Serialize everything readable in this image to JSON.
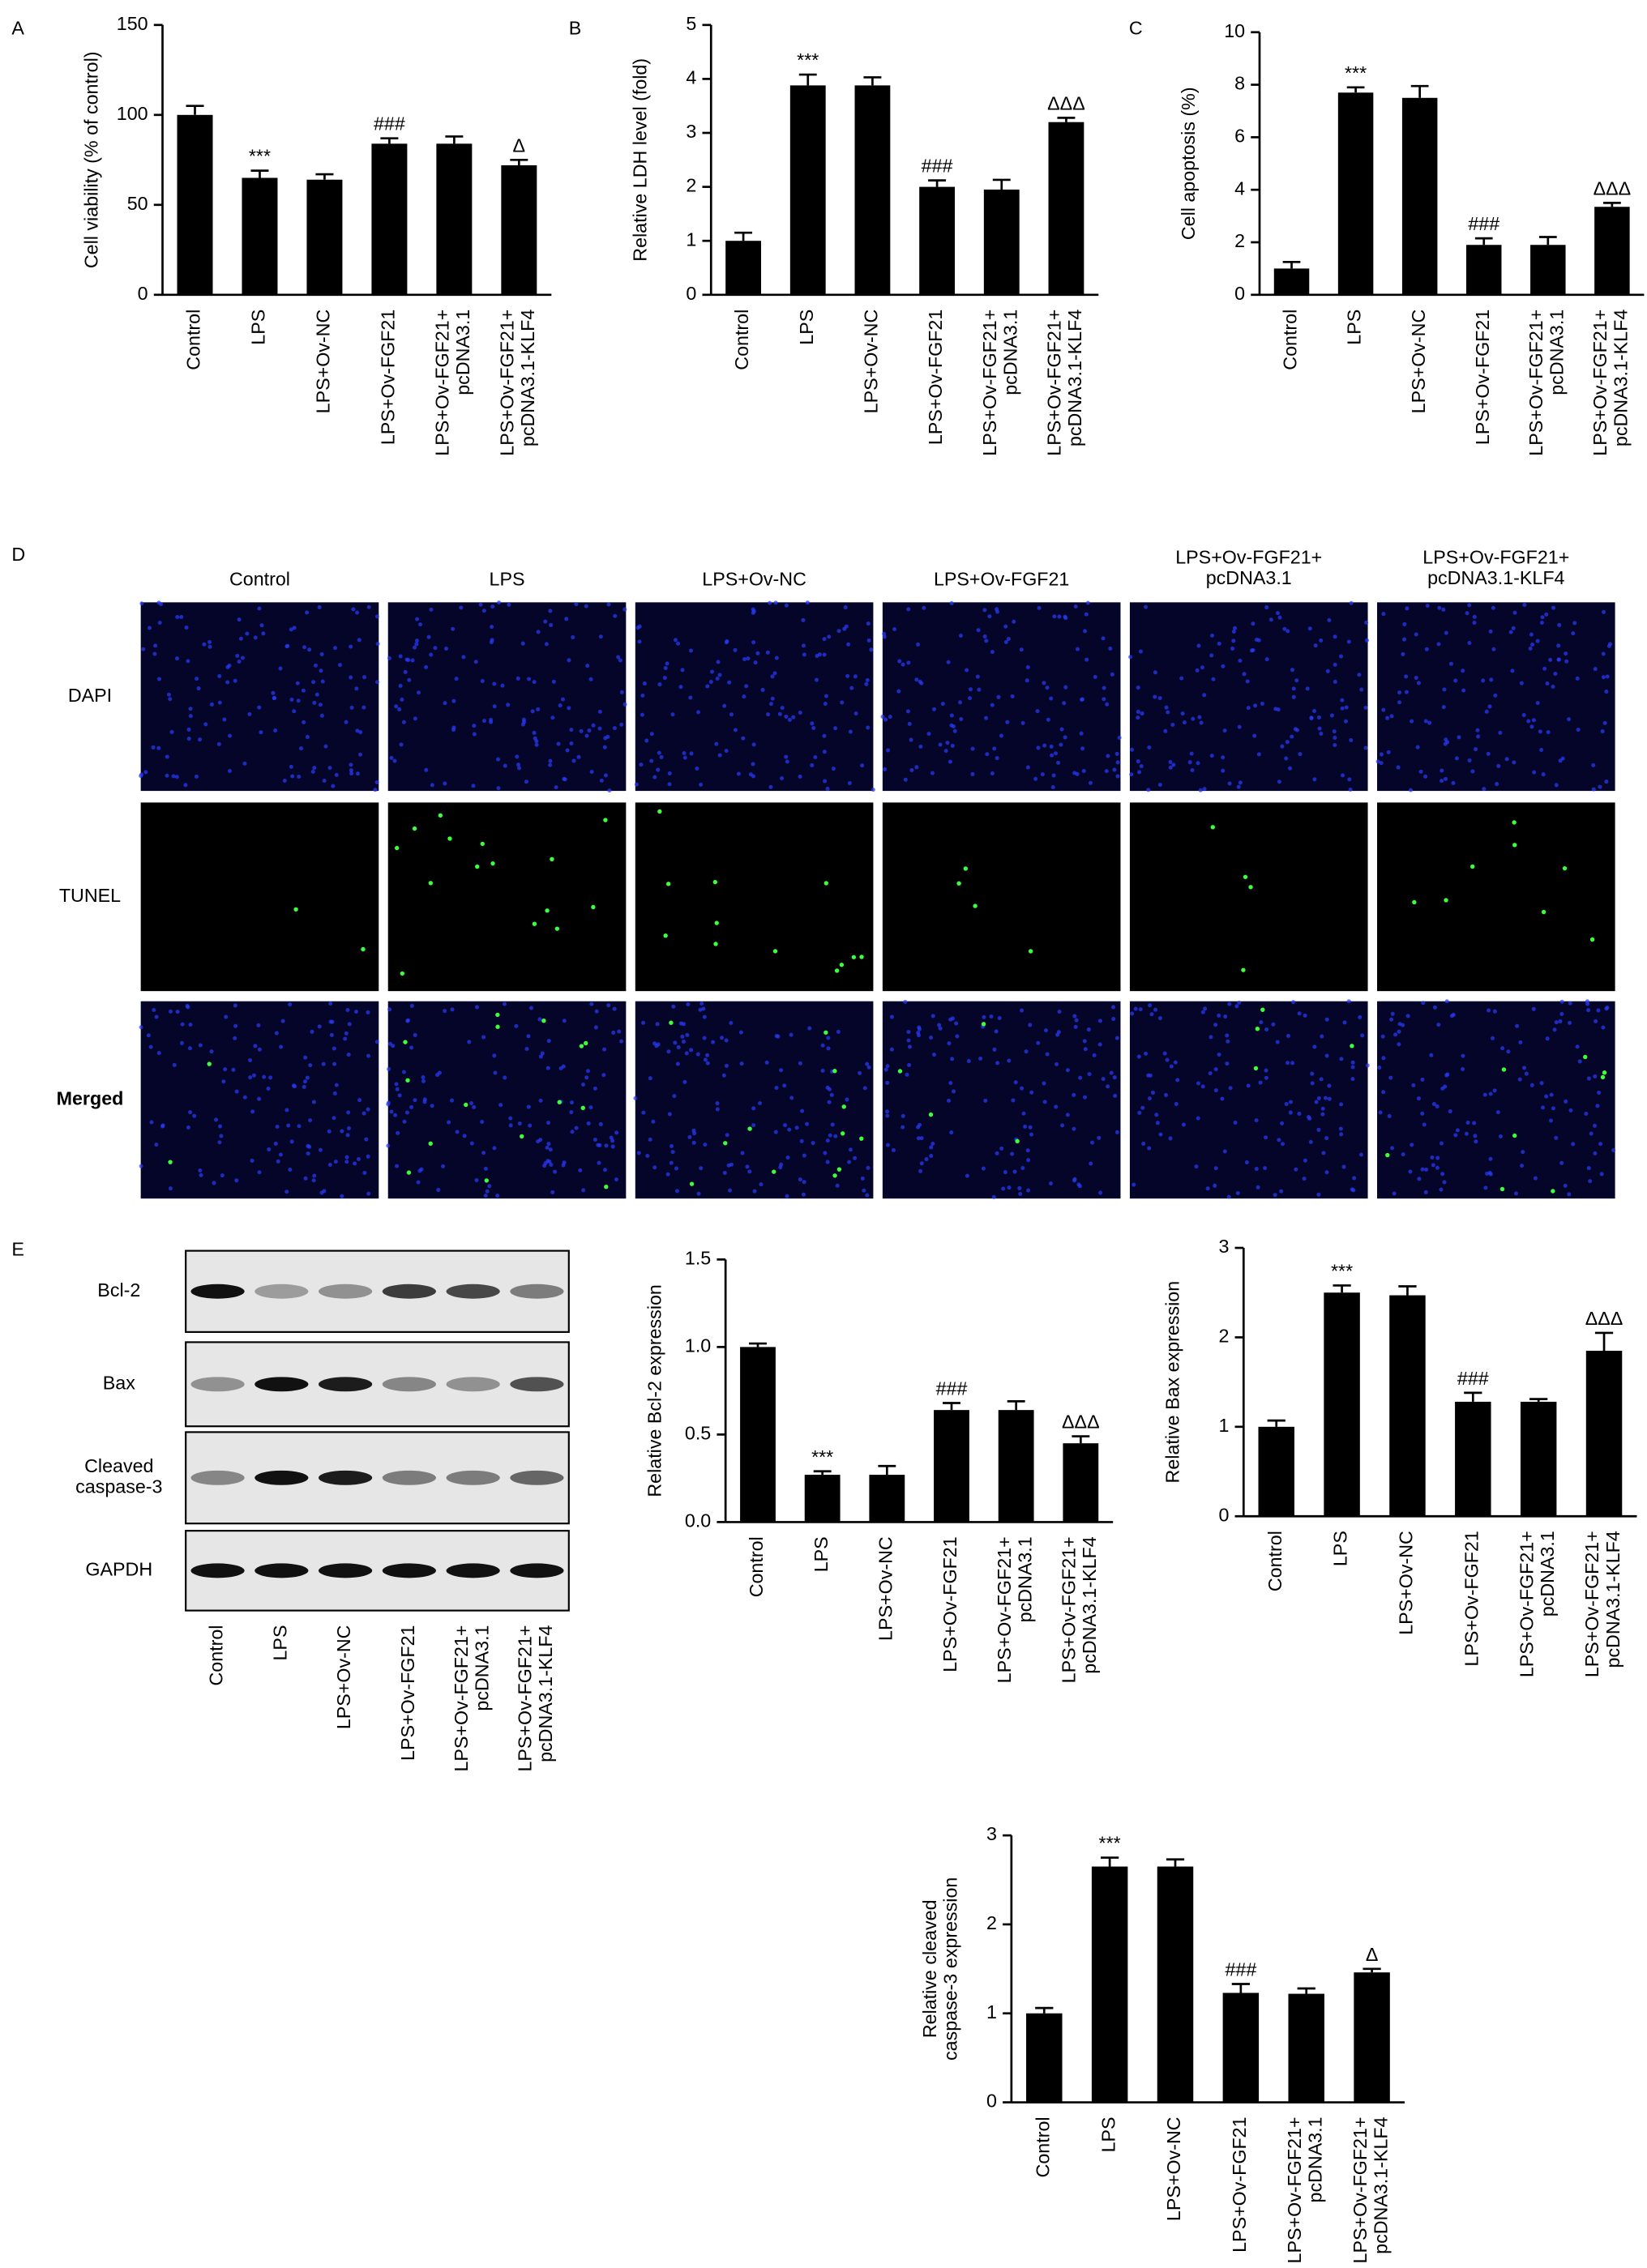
{
  "panel_labels": [
    "A",
    "B",
    "C",
    "D",
    "E"
  ],
  "chart_data": [
    {
      "type": "bar",
      "ylabel": "Cell viability (% of control)",
      "categories": [
        "Control",
        "LPS",
        "LPS+Ov-NC",
        "LPS+Ov-FGF21",
        "LPS+Ov-FGF21+\npcDNA3.1",
        "LPS+Ov-FGF21+\npcDNA3.1-KLF4"
      ],
      "values": [
        100,
        65,
        64,
        84,
        84,
        72
      ],
      "errors": [
        5,
        4,
        3,
        3,
        4,
        3
      ],
      "annotations": [
        null,
        "***",
        null,
        "###",
        null,
        "Δ"
      ],
      "ylim": [
        0,
        150
      ],
      "yticks": [
        0,
        50,
        100,
        150
      ],
      "color": "#000000"
    },
    {
      "type": "bar",
      "ylabel": "Relative LDH level (fold)",
      "categories": [
        "Control",
        "LPS",
        "LPS+Ov-NC",
        "LPS+Ov-FGF21",
        "LPS+Ov-FGF21+\npcDNA3.1",
        "LPS+Ov-FGF21+\npcDNA3.1-KLF4"
      ],
      "values": [
        1,
        3.88,
        3.88,
        2,
        1.95,
        3.2
      ],
      "errors": [
        0.15,
        0.2,
        0.15,
        0.12,
        0.18,
        0.08
      ],
      "annotations": [
        null,
        "***",
        null,
        "###",
        null,
        "ΔΔΔ"
      ],
      "ylim": [
        0,
        5
      ],
      "yticks": [
        0,
        1,
        2,
        3,
        4,
        5
      ],
      "color": "#000000"
    },
    {
      "type": "bar",
      "ylabel": "Cell apoptosis (%)",
      "categories": [
        "Control",
        "LPS",
        "LPS+Ov-NC",
        "LPS+Ov-FGF21",
        "LPS+Ov-FGF21+\npcDNA3.1",
        "LPS+Ov-FGF21+\npcDNA3.1-KLF4"
      ],
      "values": [
        1,
        7.7,
        7.5,
        1.9,
        1.9,
        3.35
      ],
      "errors": [
        0.25,
        0.2,
        0.45,
        0.25,
        0.3,
        0.15
      ],
      "annotations": [
        null,
        "***",
        null,
        "###",
        null,
        "ΔΔΔ"
      ],
      "ylim": [
        0,
        10
      ],
      "yticks": [
        0,
        2,
        4,
        6,
        8,
        {
          "value": 10,
          "label": "10"
        }
      ],
      "color": "#000000"
    },
    {
      "type": "bar",
      "ylabel": "Relative Bcl-2 expression",
      "categories": [
        "Control",
        "LPS",
        "LPS+Ov-NC",
        "LPS+Ov-FGF21",
        "LPS+Ov-FGF21+\npcDNA3.1",
        "LPS+Ov-FGF21+\npcDNA3.1-KLF4"
      ],
      "values": [
        1,
        0.27,
        0.27,
        0.64,
        0.64,
        0.45
      ],
      "errors": [
        0.02,
        0.02,
        0.05,
        0.04,
        0.05,
        0.04
      ],
      "annotations": [
        null,
        "***",
        null,
        "###",
        null,
        "ΔΔΔ"
      ],
      "ylim": [
        0,
        1.5
      ],
      "yticks": [
        {
          "value": 0,
          "label": "0.0"
        },
        0.5,
        {
          "value": 1,
          "label": "1.0"
        },
        1.5
      ],
      "color": "#000000"
    },
    {
      "type": "bar",
      "ylabel": "Relative Bax expression",
      "categories": [
        "Control",
        "LPS",
        "LPS+Ov-NC",
        "LPS+Ov-FGF21",
        "LPS+Ov-FGF21+\npcDNA3.1",
        "LPS+Ov-FGF21+\npcDNA3.1-KLF4"
      ],
      "values": [
        1,
        2.5,
        2.47,
        1.28,
        1.28,
        1.85
      ],
      "errors": [
        0.07,
        0.08,
        0.1,
        0.1,
        0.03,
        0.2
      ],
      "annotations": [
        null,
        "***",
        null,
        "###",
        null,
        "ΔΔΔ"
      ],
      "ylim": [
        0,
        3
      ],
      "yticks": [
        0,
        1,
        2,
        3
      ],
      "color": "#000000"
    },
    {
      "type": "bar",
      "ylabel": "Relative cleaved\ncaspase-3 expression",
      "categories": [
        "Control",
        "LPS",
        "LPS+Ov-NC",
        "LPS+Ov-FGF21",
        "LPS+Ov-FGF21+\npcDNA3.1",
        "LPS+Ov-FGF21+\npcDNA3.1-KLF4"
      ],
      "values": [
        1,
        2.65,
        2.65,
        1.23,
        1.22,
        1.46
      ],
      "errors": [
        0.06,
        0.1,
        0.08,
        0.1,
        0.06,
        0.04
      ],
      "annotations": [
        null,
        "***",
        null,
        "###",
        null,
        "Δ"
      ],
      "ylim": [
        0,
        3
      ],
      "yticks": [
        0,
        1,
        2,
        3
      ],
      "color": "#000000"
    }
  ],
  "microscopy": {
    "columns": [
      "Control",
      "LPS",
      "LPS+Ov-NC",
      "LPS+Ov-FGF21",
      "LPS+Ov-FGF21+\npcDNA3.1",
      "LPS+Ov-FGF21+\npcDNA3.1-KLF4"
    ],
    "rows": [
      "DAPI",
      "TUNEL",
      "Merged"
    ]
  },
  "western_blot": {
    "proteins": [
      "Bcl-2",
      "Bax",
      "Cleaved\ncaspase-3",
      "GAPDH"
    ],
    "lanes": [
      "Control",
      "LPS",
      "LPS+Ov-NC",
      "LPS+Ov-FGF21",
      "LPS+Ov-FGF21+\npcDNA3.1",
      "LPS+Ov-FGF21+\npcDNA3.1-KLF4"
    ]
  }
}
